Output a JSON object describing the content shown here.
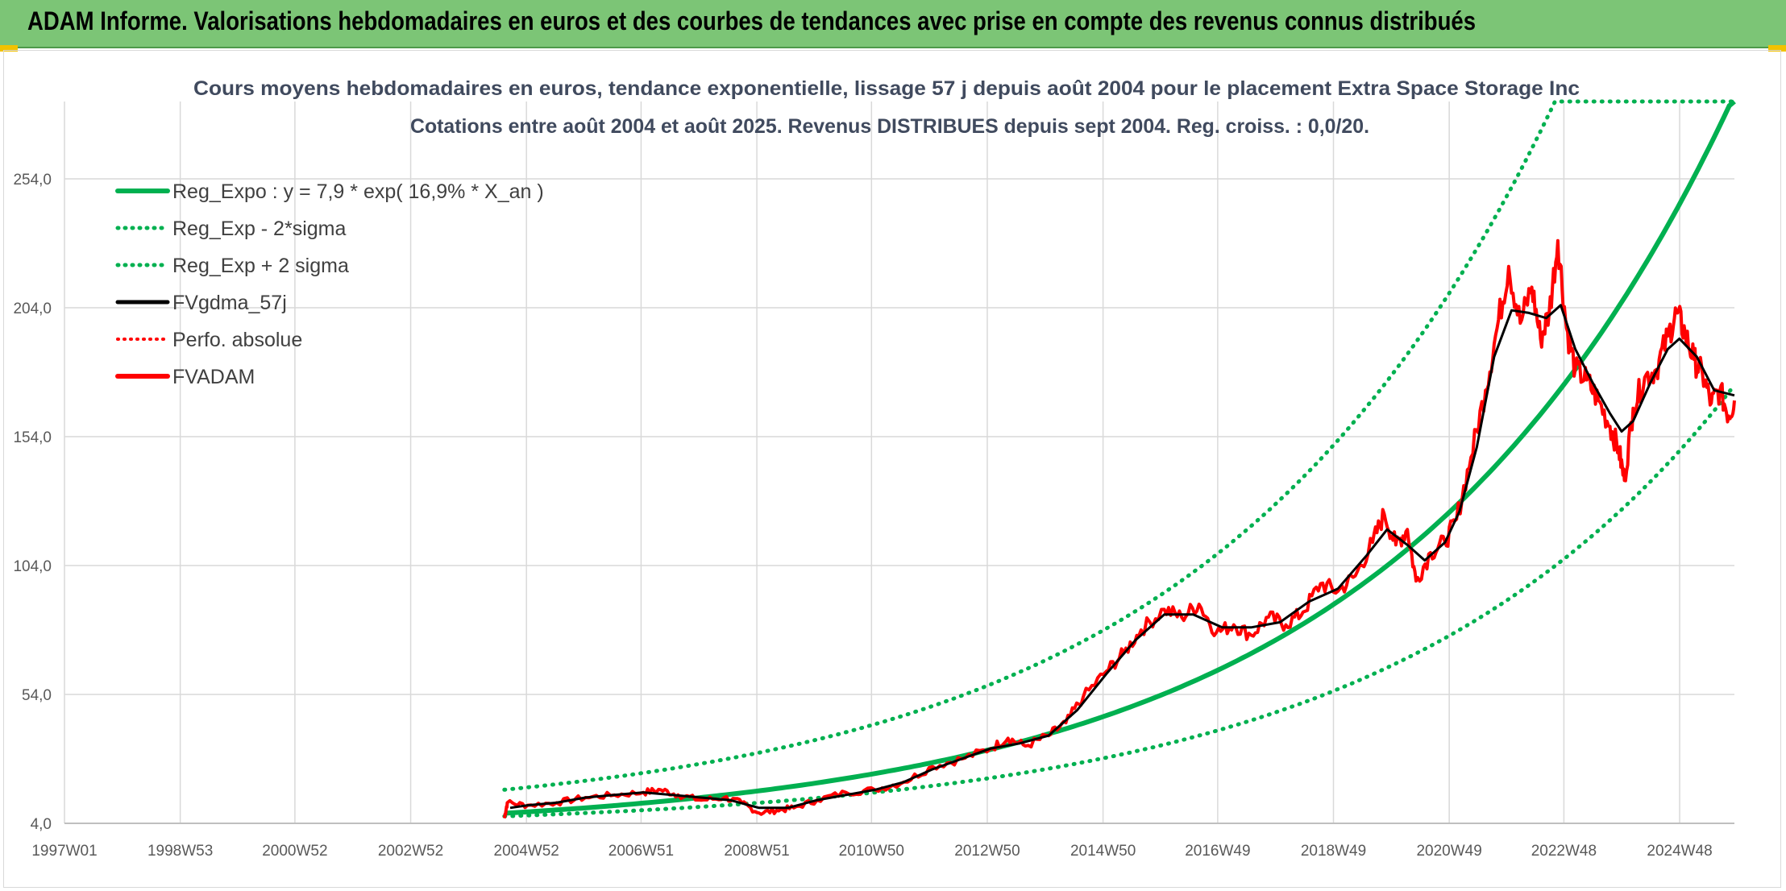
{
  "banner": {
    "title": "ADAM Informe. Valorisations hebdomadaires en euros et des courbes de tendances avec prise en compte des revenus connus distribués"
  },
  "colors": {
    "banner_bg": "#7cc576",
    "reg": "#00b050",
    "fvgdma": "#000000",
    "fvadam": "#ff0000",
    "perfo": "#ff0000",
    "grid": "#d9d9d9"
  },
  "chart_data": {
    "type": "line",
    "title_line1": "Cours moyens hebdomadaires en euros, tendance exponentielle, lissage 57 j depuis août 2004 pour le placement Extra Space Storage Inc",
    "title_line2": "Cotations entre août 2004 et août 2025. Revenus DISTRIBUES depuis sept 2004. Reg. croiss. : 0,0/20.",
    "x_ticks": [
      "1997W01",
      "1998W53",
      "2000W52",
      "2002W52",
      "2004W52",
      "2006W51",
      "2008W51",
      "2010W50",
      "2012W50",
      "2014W50",
      "2016W49",
      "2018W49",
      "2020W49",
      "2022W48",
      "2024W48"
    ],
    "xlim": [
      1997.0,
      2025.85
    ],
    "y_ticks": [
      "4,0",
      "54,0",
      "104,0",
      "154,0",
      "204,0",
      "254,0"
    ],
    "ylim": [
      4,
      284
    ],
    "legend": [
      {
        "name": "Reg_Expo : y = 7,9 * exp( 16,9% *  X_an )",
        "style": "solid-green"
      },
      {
        "name": "Reg_Exp - 2*sigma",
        "style": "dotted-green"
      },
      {
        "name": "Reg_Exp + 2 sigma",
        "style": "dotted-green"
      },
      {
        "name": "FVgdma_57j",
        "style": "solid-black"
      },
      {
        "name": "Perfo. absolue",
        "style": "dotted-red"
      },
      {
        "name": "FVADAM",
        "style": "solid-red"
      }
    ],
    "regression": {
      "a": 7.9,
      "b": 0.169,
      "x0": 2004.6
    },
    "lower_factor": 0.6,
    "upper_factor": 1.65,
    "upper_cap": 284,
    "series": [
      {
        "name": "FVADAM",
        "points": [
          [
            2004.6,
            6
          ],
          [
            2004.65,
            12
          ],
          [
            2005.0,
            11
          ],
          [
            2005.5,
            12
          ],
          [
            2006.0,
            14
          ],
          [
            2006.5,
            15
          ],
          [
            2007.0,
            16
          ],
          [
            2007.3,
            17
          ],
          [
            2007.6,
            15
          ],
          [
            2008.0,
            13
          ],
          [
            2008.4,
            14
          ],
          [
            2008.7,
            12
          ],
          [
            2009.0,
            8
          ],
          [
            2009.3,
            9
          ],
          [
            2009.6,
            10
          ],
          [
            2010.0,
            13
          ],
          [
            2010.5,
            16
          ],
          [
            2011.0,
            17
          ],
          [
            2011.5,
            20
          ],
          [
            2012.0,
            26
          ],
          [
            2012.5,
            29
          ],
          [
            2013.0,
            33
          ],
          [
            2013.3,
            37
          ],
          [
            2013.6,
            34
          ],
          [
            2014.0,
            38
          ],
          [
            2014.3,
            43
          ],
          [
            2014.6,
            53
          ],
          [
            2015.0,
            63
          ],
          [
            2015.3,
            70
          ],
          [
            2015.6,
            79
          ],
          [
            2016.0,
            87
          ],
          [
            2016.3,
            84
          ],
          [
            2016.6,
            89
          ],
          [
            2016.9,
            78
          ],
          [
            2017.2,
            81
          ],
          [
            2017.5,
            77
          ],
          [
            2017.8,
            84
          ],
          [
            2018.1,
            81
          ],
          [
            2018.4,
            86
          ],
          [
            2018.7,
            97
          ],
          [
            2019.0,
            94
          ],
          [
            2019.3,
            100
          ],
          [
            2019.6,
            113
          ],
          [
            2019.8,
            124
          ],
          [
            2020.0,
            112
          ],
          [
            2020.2,
            118
          ],
          [
            2020.35,
            98
          ],
          [
            2020.6,
            109
          ],
          [
            2020.85,
            113
          ],
          [
            2021.05,
            122
          ],
          [
            2021.3,
            146
          ],
          [
            2021.55,
            172
          ],
          [
            2021.75,
            196
          ],
          [
            2021.95,
            220
          ],
          [
            2022.15,
            198
          ],
          [
            2022.35,
            212
          ],
          [
            2022.5,
            192
          ],
          [
            2022.65,
            202
          ],
          [
            2022.8,
            230
          ],
          [
            2022.95,
            196
          ],
          [
            2023.1,
            180
          ],
          [
            2023.3,
            176
          ],
          [
            2023.5,
            168
          ],
          [
            2023.7,
            158
          ],
          [
            2023.85,
            149
          ],
          [
            2023.95,
            137
          ],
          [
            2024.1,
            165
          ],
          [
            2024.3,
            177
          ],
          [
            2024.5,
            180
          ],
          [
            2024.7,
            193
          ],
          [
            2024.85,
            202
          ],
          [
            2025.0,
            194
          ],
          [
            2025.15,
            184
          ],
          [
            2025.3,
            178
          ],
          [
            2025.45,
            167
          ],
          [
            2025.6,
            172
          ],
          [
            2025.75,
            162
          ],
          [
            2025.85,
            168
          ]
        ]
      },
      {
        "name": "FVgdma_57j",
        "points": [
          [
            2004.7,
            10
          ],
          [
            2005.0,
            11
          ],
          [
            2005.5,
            12
          ],
          [
            2006.0,
            14
          ],
          [
            2006.5,
            15
          ],
          [
            2007.0,
            16
          ],
          [
            2007.5,
            15
          ],
          [
            2008.0,
            14
          ],
          [
            2008.5,
            13
          ],
          [
            2009.0,
            10
          ],
          [
            2009.5,
            10
          ],
          [
            2010.0,
            13
          ],
          [
            2010.5,
            15
          ],
          [
            2011.0,
            17
          ],
          [
            2011.5,
            20
          ],
          [
            2012.0,
            25
          ],
          [
            2012.5,
            29
          ],
          [
            2013.0,
            33
          ],
          [
            2013.5,
            35
          ],
          [
            2014.0,
            38
          ],
          [
            2014.5,
            48
          ],
          [
            2015.0,
            62
          ],
          [
            2015.5,
            75
          ],
          [
            2016.0,
            85
          ],
          [
            2016.5,
            85
          ],
          [
            2017.0,
            80
          ],
          [
            2017.5,
            80
          ],
          [
            2018.0,
            82
          ],
          [
            2018.5,
            90
          ],
          [
            2019.0,
            95
          ],
          [
            2019.5,
            108
          ],
          [
            2019.85,
            118
          ],
          [
            2020.2,
            112
          ],
          [
            2020.5,
            106
          ],
          [
            2020.85,
            113
          ],
          [
            2021.1,
            125
          ],
          [
            2021.4,
            150
          ],
          [
            2021.7,
            185
          ],
          [
            2022.0,
            203
          ],
          [
            2022.3,
            202
          ],
          [
            2022.6,
            200
          ],
          [
            2022.85,
            205
          ],
          [
            2023.1,
            188
          ],
          [
            2023.4,
            175
          ],
          [
            2023.7,
            163
          ],
          [
            2023.9,
            156
          ],
          [
            2024.1,
            160
          ],
          [
            2024.4,
            175
          ],
          [
            2024.7,
            188
          ],
          [
            2024.9,
            192
          ],
          [
            2025.2,
            185
          ],
          [
            2025.5,
            172
          ],
          [
            2025.85,
            170
          ]
        ]
      }
    ]
  }
}
